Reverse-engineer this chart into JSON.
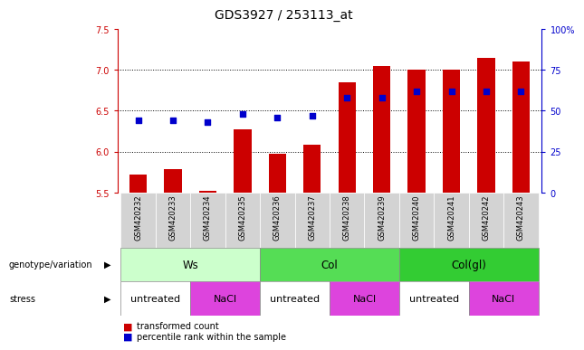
{
  "title": "GDS3927 / 253113_at",
  "samples": [
    "GSM420232",
    "GSM420233",
    "GSM420234",
    "GSM420235",
    "GSM420236",
    "GSM420237",
    "GSM420238",
    "GSM420239",
    "GSM420240",
    "GSM420241",
    "GSM420242",
    "GSM420243"
  ],
  "transformed_count": [
    5.72,
    5.78,
    5.52,
    6.27,
    5.97,
    6.08,
    6.85,
    7.05,
    7.0,
    7.0,
    7.15,
    7.1
  ],
  "percentile_rank": [
    44,
    44,
    43,
    48,
    46,
    47,
    58,
    58,
    62,
    62,
    62,
    62
  ],
  "bar_bottom": 5.5,
  "ylim_left": [
    5.5,
    7.5
  ],
  "ylim_right": [
    0,
    100
  ],
  "yticks_left": [
    5.5,
    6.0,
    6.5,
    7.0,
    7.5
  ],
  "yticks_right": [
    0,
    25,
    50,
    75,
    100
  ],
  "ytick_labels_right": [
    "0",
    "25",
    "50",
    "75",
    "100%"
  ],
  "bar_color": "#cc0000",
  "dot_color": "#0000cc",
  "bg_color": "#ffffff",
  "genotype_groups": [
    {
      "label": "Ws",
      "start": 0,
      "end": 3,
      "color": "#ccffcc"
    },
    {
      "label": "Col",
      "start": 4,
      "end": 7,
      "color": "#55dd55"
    },
    {
      "label": "Col(gl)",
      "start": 8,
      "end": 11,
      "color": "#33cc33"
    }
  ],
  "stress_groups": [
    {
      "label": "untreated",
      "start": 0,
      "end": 1,
      "color": "#ffffff"
    },
    {
      "label": "NaCl",
      "start": 2,
      "end": 3,
      "color": "#dd44dd"
    },
    {
      "label": "untreated",
      "start": 4,
      "end": 5,
      "color": "#ffffff"
    },
    {
      "label": "NaCl",
      "start": 6,
      "end": 7,
      "color": "#dd44dd"
    },
    {
      "label": "untreated",
      "start": 8,
      "end": 9,
      "color": "#ffffff"
    },
    {
      "label": "NaCl",
      "start": 10,
      "end": 11,
      "color": "#dd44dd"
    }
  ],
  "left_axis_color": "#cc0000",
  "right_axis_color": "#0000cc",
  "tick_fontsize": 7,
  "title_fontsize": 10,
  "legend_items": [
    {
      "color": "#cc0000",
      "label": "transformed count"
    },
    {
      "color": "#0000cc",
      "label": "percentile rank within the sample"
    }
  ],
  "genotype_label": "genotype/variation",
  "stress_label": "stress"
}
